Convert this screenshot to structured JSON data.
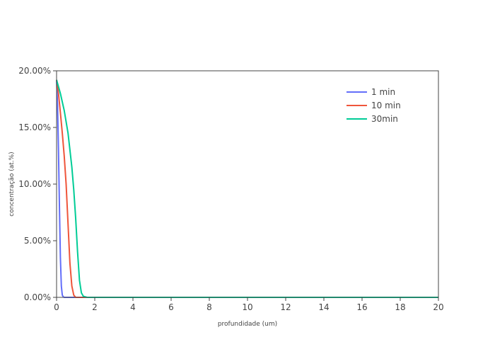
{
  "chart_data": {
    "type": "line",
    "xlabel": "profundidade (um)",
    "ylabel": "concentração (at.%)",
    "xlim": [
      0,
      20
    ],
    "ylim": [
      0,
      0.2
    ],
    "x_ticks": [
      "0",
      "2",
      "4",
      "6",
      "8",
      "10",
      "12",
      "14",
      "16",
      "18",
      "20"
    ],
    "y_ticks": [
      "0.00%",
      "5.00%",
      "10.00%",
      "15.00%",
      "20.00%"
    ],
    "grid": false,
    "legend_position": "top-right",
    "series": [
      {
        "name": "1 min",
        "color": "#636efa",
        "x": [
          0,
          0.05,
          0.1,
          0.15,
          0.2,
          0.25,
          0.3,
          0.35,
          0.4,
          20
        ],
        "y": [
          0.192,
          0.17,
          0.13,
          0.08,
          0.035,
          0.01,
          0.002,
          0.0005,
          0,
          0
        ]
      },
      {
        "name": "10 min",
        "color": "#ef553b",
        "x": [
          0,
          0.1,
          0.2,
          0.3,
          0.4,
          0.5,
          0.6,
          0.7,
          0.8,
          0.9,
          1.0,
          20
        ],
        "y": [
          0.192,
          0.18,
          0.163,
          0.145,
          0.125,
          0.1,
          0.065,
          0.03,
          0.01,
          0.002,
          0,
          0
        ]
      },
      {
        "name": "30min",
        "color": "#00cc96",
        "x": [
          0,
          0.2,
          0.4,
          0.6,
          0.7,
          0.8,
          0.9,
          1.0,
          1.1,
          1.2,
          1.3,
          1.4,
          1.6,
          20
        ],
        "y": [
          0.192,
          0.18,
          0.165,
          0.145,
          0.13,
          0.115,
          0.095,
          0.07,
          0.04,
          0.015,
          0.004,
          0.001,
          0,
          0
        ]
      }
    ]
  }
}
